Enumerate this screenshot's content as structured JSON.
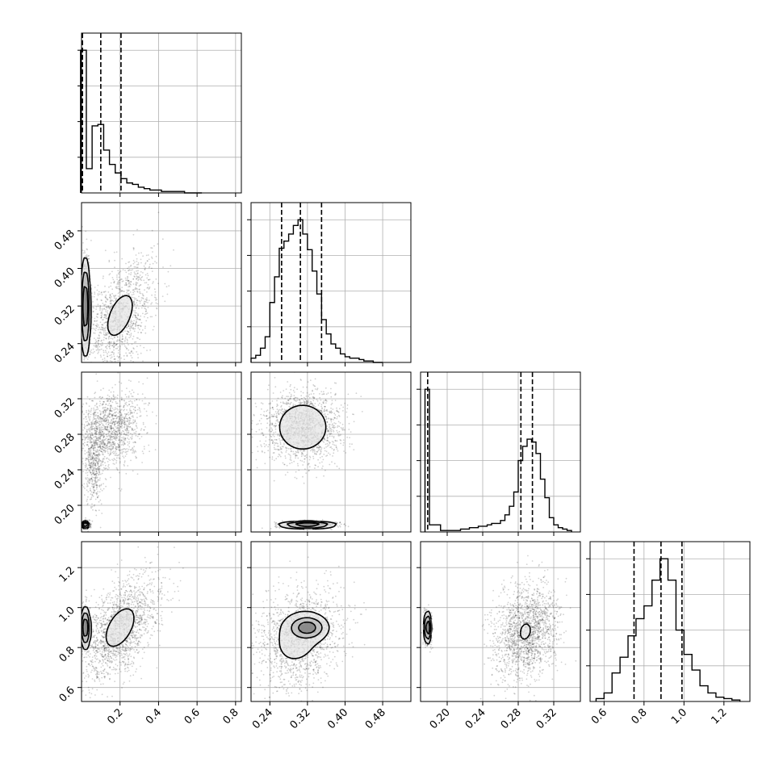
{
  "chart_data": {
    "type": "corner",
    "grid": true,
    "colors": {
      "frame": "#000000",
      "grid": "#b0b0b0",
      "samples": "#000000",
      "quantile": "#000000"
    },
    "params": [
      {
        "ticks": [
          0.2,
          0.4,
          0.6,
          0.8
        ],
        "tick_labels": [
          "0.2",
          "0.4",
          "0.6",
          "0.8"
        ],
        "range": [
          0.0,
          0.83
        ],
        "quantiles": [
          0.005,
          0.1,
          0.205
        ],
        "hist_x": [
          0.01,
          0.04,
          0.07,
          0.1,
          0.13,
          0.16,
          0.19,
          0.22,
          0.25,
          0.28,
          0.31,
          0.34,
          0.37,
          0.4,
          0.43,
          0.46,
          0.49,
          0.52,
          0.55,
          0.58,
          0.61
        ],
        "hist_counts": [
          1.0,
          0.17,
          0.47,
          0.48,
          0.3,
          0.2,
          0.14,
          0.1,
          0.07,
          0.06,
          0.04,
          0.03,
          0.02,
          0.02,
          0.01,
          0.01,
          0.01,
          0.01,
          0.0,
          0.0,
          0.0
        ]
      },
      {
        "ticks": [
          0.24,
          0.32,
          0.4,
          0.48
        ],
        "tick_labels": [
          "0.24",
          "0.32",
          "0.40",
          "0.48"
        ],
        "range": [
          0.2,
          0.54
        ],
        "quantiles": [
          0.265,
          0.305,
          0.35
        ],
        "hist_x": [
          0.205,
          0.215,
          0.225,
          0.235,
          0.245,
          0.255,
          0.265,
          0.275,
          0.285,
          0.295,
          0.305,
          0.315,
          0.325,
          0.335,
          0.345,
          0.355,
          0.365,
          0.375,
          0.385,
          0.395,
          0.405,
          0.415,
          0.425,
          0.435,
          0.445,
          0.455,
          0.465,
          0.475
        ],
        "hist_counts": [
          0.03,
          0.05,
          0.1,
          0.18,
          0.42,
          0.6,
          0.8,
          0.85,
          0.9,
          0.96,
          1.0,
          0.9,
          0.79,
          0.64,
          0.48,
          0.3,
          0.2,
          0.13,
          0.1,
          0.06,
          0.04,
          0.03,
          0.03,
          0.02,
          0.01,
          0.01,
          0.0,
          0.0
        ]
      },
      {
        "ticks": [
          0.2,
          0.24,
          0.28,
          0.32
        ],
        "tick_labels": [
          "0.20",
          "0.24",
          "0.28",
          "0.32"
        ],
        "range": [
          0.17,
          0.35
        ],
        "quantiles": [
          0.178,
          0.283,
          0.296
        ],
        "hist_x": [
          0.1775,
          0.1825,
          0.2025,
          0.2075,
          0.2125,
          0.2175,
          0.2225,
          0.2275,
          0.2325,
          0.2375,
          0.2425,
          0.2475,
          0.2525,
          0.2575,
          0.2625,
          0.2675,
          0.2725,
          0.2775,
          0.2825,
          0.2875,
          0.2925,
          0.2975,
          0.3025,
          0.3075,
          0.3125,
          0.3175,
          0.3225,
          0.3275,
          0.3325,
          0.3375
        ],
        "hist_counts": [
          1.0,
          0.05,
          0.01,
          0.01,
          0.01,
          0.02,
          0.02,
          0.03,
          0.03,
          0.04,
          0.04,
          0.05,
          0.06,
          0.06,
          0.08,
          0.12,
          0.18,
          0.28,
          0.5,
          0.6,
          0.65,
          0.63,
          0.55,
          0.37,
          0.24,
          0.1,
          0.05,
          0.03,
          0.02,
          0.01
        ]
      },
      {
        "ticks": [
          0.6,
          0.8,
          1.0,
          1.2
        ],
        "tick_labels": [
          "0.6",
          "0.8",
          "1.0",
          "1.2"
        ],
        "range": [
          0.53,
          1.33
        ],
        "quantiles": [
          0.75,
          0.885,
          0.99
        ],
        "hist_x": [
          0.58,
          0.62,
          0.66,
          0.7,
          0.74,
          0.78,
          0.82,
          0.86,
          0.9,
          0.94,
          0.98,
          1.02,
          1.06,
          1.1,
          1.14,
          1.18,
          1.22,
          1.26
        ],
        "hist_counts": [
          0.02,
          0.06,
          0.2,
          0.31,
          0.46,
          0.58,
          0.67,
          0.85,
          1.0,
          0.85,
          0.5,
          0.33,
          0.22,
          0.11,
          0.06,
          0.03,
          0.02,
          0.01
        ]
      }
    ],
    "panels_2d": [
      {
        "row": 1,
        "col": 0,
        "clusters": [
          {
            "center": [
              0.02,
              0.32
            ],
            "sd": [
              0.012,
              0.05
            ],
            "rho": 0.0,
            "weight": 0.45
          },
          {
            "center": [
              0.2,
              0.3
            ],
            "sd": [
              0.09,
              0.06
            ],
            "rho": 0.5,
            "weight": 0.55
          }
        ]
      },
      {
        "row": 2,
        "col": 0,
        "clusters": [
          {
            "center": [
              0.02,
              0.178
            ],
            "sd": [
              0.01,
              0.002
            ],
            "rho": 0.0,
            "weight": 0.25
          },
          {
            "center": [
              0.15,
              0.285
            ],
            "sd": [
              0.08,
              0.022
            ],
            "rho": 0.1,
            "weight": 0.55
          },
          {
            "center": [
              0.06,
              0.25
            ],
            "sd": [
              0.025,
              0.025
            ],
            "rho": 0.0,
            "weight": 0.2
          }
        ]
      },
      {
        "row": 2,
        "col": 1,
        "clusters": [
          {
            "center": [
              0.32,
              0.178
            ],
            "sd": [
              0.03,
              0.002
            ],
            "rho": 0.0,
            "weight": 0.25
          },
          {
            "center": [
              0.31,
              0.288
            ],
            "sd": [
              0.04,
              0.02
            ],
            "rho": 0.0,
            "weight": 0.75
          }
        ]
      },
      {
        "row": 3,
        "col": 0,
        "clusters": [
          {
            "center": [
              0.02,
              0.9
            ],
            "sd": [
              0.012,
              0.05
            ],
            "rho": 0.0,
            "weight": 0.25
          },
          {
            "center": [
              0.2,
              0.9
            ],
            "sd": [
              0.1,
              0.13
            ],
            "rho": 0.5,
            "weight": 0.75
          }
        ]
      },
      {
        "row": 3,
        "col": 1,
        "clusters": [
          {
            "center": [
              0.32,
              0.9
            ],
            "sd": [
              0.02,
              0.03
            ],
            "rho": 0.0,
            "weight": 0.35
          },
          {
            "center": [
              0.3,
              0.85
            ],
            "sd": [
              0.045,
              0.12
            ],
            "rho": 0.2,
            "weight": 0.65
          }
        ]
      },
      {
        "row": 3,
        "col": 2,
        "clusters": [
          {
            "center": [
              0.178,
              0.9
            ],
            "sd": [
              0.002,
              0.04
            ],
            "rho": 0.0,
            "weight": 0.25
          },
          {
            "center": [
              0.288,
              0.88
            ],
            "sd": [
              0.018,
              0.12
            ],
            "rho": 0.2,
            "weight": 0.75
          }
        ]
      }
    ]
  }
}
